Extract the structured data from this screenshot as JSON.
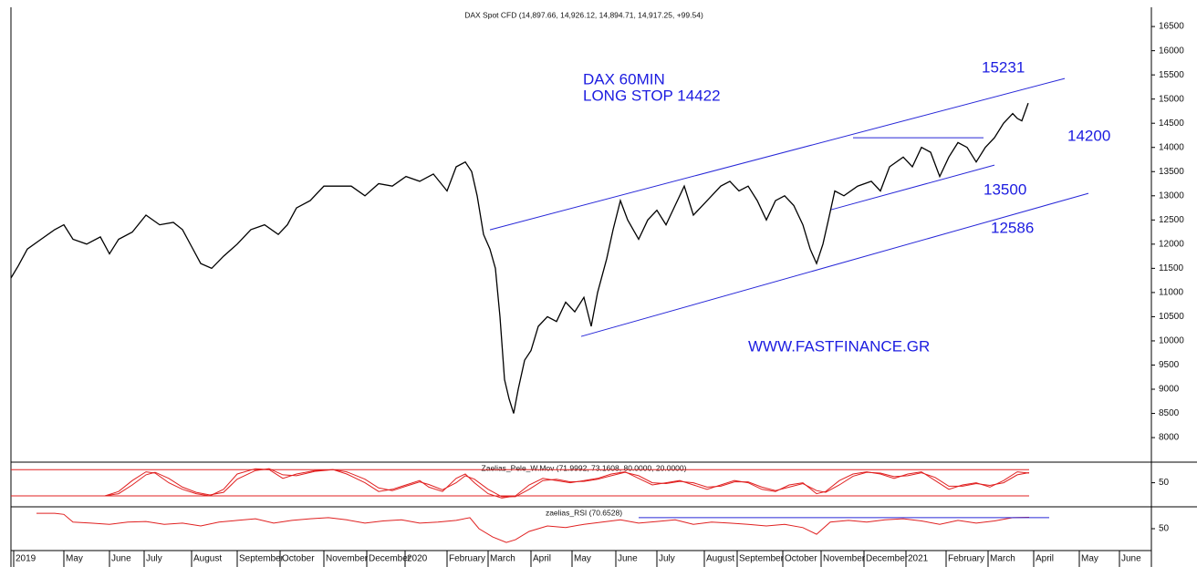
{
  "chart_data": [
    {
      "type": "line",
      "title": "DAX Spot CFD (14,897.66, 14,926.12, 14,894.71, 14,917.25, +99.54)",
      "annotations": [
        "DAX 60MIN",
        "LONG STOP 14422",
        "15231",
        "14200",
        "13500",
        "12586",
        "WWW.FASTFINANCE.GR"
      ],
      "xlim": [
        12,
        1262
      ],
      "ylim": [
        7530,
        16860
      ],
      "yticks": [
        8000,
        8500,
        9000,
        9500,
        10000,
        10500,
        11000,
        11500,
        12000,
        12500,
        13000,
        13500,
        14000,
        14500,
        15000,
        15500,
        16000,
        16500
      ],
      "series": [
        {
          "color": "#000000",
          "x": [
            12,
            20,
            30,
            45,
            60,
            70,
            80,
            95,
            110,
            120,
            130,
            145,
            160,
            175,
            190,
            200,
            210,
            220,
            232,
            245,
            260,
            275,
            290,
            305,
            315,
            325,
            340,
            355,
            370,
            385,
            400,
            415,
            430,
            445,
            460,
            475,
            490,
            500,
            510,
            517,
            523,
            530,
            537,
            543,
            548,
            553,
            558,
            563,
            568,
            575,
            582,
            590,
            600,
            610,
            620,
            630,
            640,
            648,
            655,
            665,
            672,
            680,
            688,
            700,
            710,
            720,
            730,
            740,
            750,
            760,
            770,
            780,
            790,
            800,
            810,
            820,
            830,
            840,
            850,
            860,
            870,
            880,
            888,
            895,
            902,
            908,
            915,
            925,
            940,
            955,
            965,
            975,
            990,
            1000,
            1010,
            1020,
            1030,
            1040,
            1050,
            1060,
            1070,
            1080,
            1090,
            1100,
            1110,
            1115,
            1120,
            1127
          ],
          "values": [
            11300,
            11550,
            11900,
            12100,
            12300,
            12400,
            12100,
            12000,
            12150,
            11800,
            12100,
            12250,
            12600,
            12400,
            12450,
            12300,
            11950,
            11600,
            11500,
            11750,
            12000,
            12300,
            12400,
            12200,
            12400,
            12750,
            12900,
            13200,
            13200,
            13200,
            13000,
            13250,
            13200,
            13400,
            13300,
            13450,
            13100,
            13600,
            13700,
            13500,
            13000,
            12200,
            11900,
            11500,
            10500,
            9200,
            8800,
            8500,
            9000,
            9600,
            9800,
            10300,
            10500,
            10400,
            10800,
            10600,
            10900,
            10300,
            11000,
            11700,
            12300,
            12900,
            12500,
            12100,
            12500,
            12700,
            12400,
            12800,
            13200,
            12600,
            12800,
            13000,
            13200,
            13300,
            13100,
            13200,
            12900,
            12500,
            12900,
            13000,
            12800,
            12400,
            11900,
            11600,
            12000,
            12500,
            13100,
            13000,
            13200,
            13300,
            13100,
            13600,
            13800,
            13600,
            14000,
            13900,
            13400,
            13800,
            14100,
            14000,
            13700,
            14000,
            14200,
            14500,
            14700,
            14600,
            14550,
            14917.25
          ]
        }
      ],
      "lines": [
        {
          "color": "#2727d8",
          "x": [
            537,
            1167
          ],
          "y": [
            12297,
            15426
          ]
        },
        {
          "color": "#2727d8",
          "x": [
            637,
            1193
          ],
          "y": [
            10092,
            13051
          ]
        },
        {
          "color": "#2727d8",
          "x": [
            935,
            1078
          ],
          "y": [
            14200,
            14200
          ]
        },
        {
          "color": "#2727d8",
          "x": [
            911,
            1090
          ],
          "y": [
            12712,
            13635
          ]
        }
      ]
    },
    {
      "type": "line",
      "title": "Zaelias_Pele_W.Mov (71.9992, 73.1608, 80.0000, 20.0000)",
      "xlim": [
        12,
        1262
      ],
      "ylim": [
        -3,
        95
      ],
      "yticks": [
        50
      ],
      "levels": [
        80,
        20
      ],
      "level_color": "#e02020",
      "series": [
        {
          "color": "#e02020",
          "x": [
            95,
            115,
            130,
            145,
            160,
            170,
            185,
            200,
            215,
            230,
            245,
            260,
            280,
            295,
            310,
            325,
            345,
            365,
            380,
            400,
            415,
            430,
            445,
            460,
            470,
            485,
            500,
            510,
            520,
            535,
            550,
            565,
            580,
            595,
            610,
            625,
            640,
            655,
            670,
            685,
            700,
            715,
            730,
            745,
            760,
            775,
            790,
            805,
            820,
            835,
            850,
            865,
            880,
            895,
            905,
            920,
            935,
            950,
            965,
            980,
            995,
            1010,
            1025,
            1040,
            1055,
            1070,
            1085,
            1100,
            1115,
            1128
          ],
          "values": [
            20,
            20,
            30,
            55,
            75,
            72,
            50,
            35,
            25,
            20,
            35,
            70,
            82,
            80,
            60,
            70,
            78,
            80,
            70,
            50,
            30,
            35,
            45,
            55,
            40,
            30,
            60,
            70,
            50,
            25,
            15,
            20,
            45,
            60,
            55,
            50,
            55,
            60,
            70,
            75,
            60,
            45,
            50,
            55,
            45,
            35,
            45,
            55,
            50,
            35,
            30,
            45,
            50,
            25,
            30,
            55,
            70,
            75,
            70,
            60,
            70,
            75,
            55,
            35,
            45,
            50,
            40,
            55,
            75,
            71.9992
          ]
        },
        {
          "color": "#e02020",
          "x": [
            95,
            115,
            130,
            145,
            160,
            170,
            185,
            200,
            215,
            230,
            245,
            260,
            280,
            295,
            310,
            325,
            345,
            365,
            380,
            400,
            415,
            430,
            445,
            460,
            470,
            485,
            500,
            510,
            520,
            535,
            550,
            565,
            580,
            595,
            610,
            625,
            640,
            655,
            670,
            685,
            700,
            715,
            730,
            745,
            760,
            775,
            790,
            805,
            820,
            835,
            850,
            865,
            880,
            895,
            905,
            920,
            935,
            950,
            965,
            980,
            995,
            1010,
            1025,
            1040,
            1055,
            1070,
            1085,
            1100,
            1115,
            1128
          ],
          "values": [
            20,
            20,
            25,
            45,
            68,
            74,
            60,
            40,
            28,
            22,
            28,
            58,
            78,
            82,
            68,
            66,
            76,
            80,
            75,
            58,
            38,
            32,
            42,
            52,
            46,
            34,
            50,
            66,
            58,
            35,
            18,
            18,
            35,
            55,
            58,
            52,
            53,
            58,
            66,
            74,
            66,
            50,
            48,
            53,
            50,
            40,
            42,
            52,
            52,
            40,
            32,
            40,
            48,
            32,
            28,
            45,
            65,
            74,
            72,
            64,
            66,
            73,
            62,
            42,
            42,
            48,
            44,
            50,
            68,
            73.1608
          ]
        }
      ]
    },
    {
      "type": "line",
      "title": "zaelias_RSI (70.6528)",
      "xlim": [
        12,
        1262
      ],
      "ylim": [
        12,
        88
      ],
      "yticks": [
        50
      ],
      "xticks": [
        {
          "value": 15,
          "label": "2019"
        },
        {
          "value": 70,
          "label": "May"
        },
        {
          "value": 120,
          "label": "June"
        },
        {
          "value": 158,
          "label": "July"
        },
        {
          "value": 210,
          "label": "August"
        },
        {
          "value": 260,
          "label": "September"
        },
        {
          "value": 307,
          "label": "October"
        },
        {
          "value": 355,
          "label": "November"
        },
        {
          "value": 402,
          "label": "December"
        },
        {
          "value": 444,
          "label": "2020"
        },
        {
          "value": 490,
          "label": "February"
        },
        {
          "value": 535,
          "label": "March"
        },
        {
          "value": 582,
          "label": "April"
        },
        {
          "value": 627,
          "label": "May"
        },
        {
          "value": 675,
          "label": "June"
        },
        {
          "value": 720,
          "label": "July"
        },
        {
          "value": 772,
          "label": "August"
        },
        {
          "value": 808,
          "label": "September"
        },
        {
          "value": 858,
          "label": "October"
        },
        {
          "value": 900,
          "label": "November"
        },
        {
          "value": 947,
          "label": "December"
        },
        {
          "value": 993,
          "label": "2021"
        },
        {
          "value": 1037,
          "label": "February"
        },
        {
          "value": 1083,
          "label": "March"
        },
        {
          "value": 1133,
          "label": "April"
        },
        {
          "value": 1183,
          "label": "May"
        },
        {
          "value": 1227,
          "label": "June"
        }
      ],
      "series": [
        {
          "color": "#e02020",
          "x": [
            40,
            60,
            70,
            80,
            100,
            120,
            140,
            160,
            180,
            200,
            220,
            240,
            260,
            280,
            300,
            320,
            340,
            360,
            380,
            400,
            420,
            440,
            460,
            480,
            500,
            515,
            525,
            540,
            555,
            565,
            580,
            600,
            620,
            640,
            660,
            680,
            700,
            720,
            740,
            760,
            780,
            800,
            820,
            840,
            860,
            880,
            895,
            910,
            930,
            950,
            970,
            990,
            1010,
            1030,
            1050,
            1070,
            1090,
            1110,
            1128
          ],
          "values": [
            78,
            78,
            76,
            62,
            60,
            58,
            62,
            63,
            58,
            60,
            55,
            62,
            65,
            68,
            60,
            65,
            68,
            70,
            66,
            60,
            64,
            66,
            60,
            62,
            65,
            70,
            50,
            35,
            25,
            30,
            45,
            55,
            52,
            58,
            62,
            66,
            60,
            63,
            66,
            58,
            62,
            60,
            58,
            55,
            58,
            52,
            40,
            62,
            65,
            62,
            66,
            68,
            64,
            58,
            65,
            60,
            64,
            70,
            70.6528
          ]
        }
      ],
      "lines": [
        {
          "color": "#2727d8",
          "x": [
            700,
            1150
          ],
          "y": [
            70,
            70
          ]
        }
      ]
    }
  ]
}
